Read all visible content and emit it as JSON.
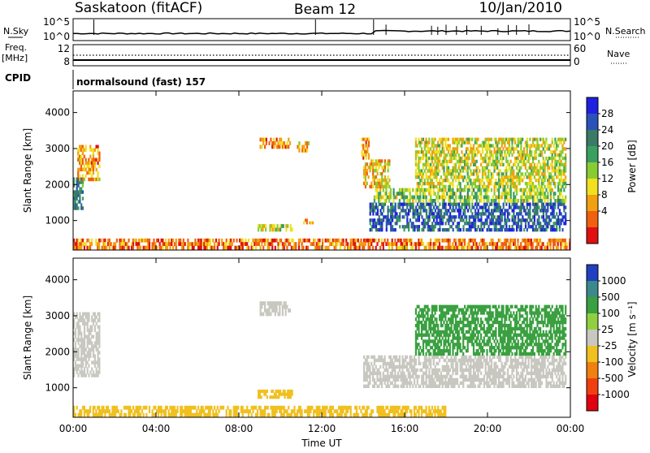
{
  "header": {
    "station": "Saskatoon (fitACF)",
    "beam": "Beam 12",
    "date": "10/Jan/2010"
  },
  "top_panels": {
    "nsky_label": "N.Sky",
    "nsky_ticks": [
      "10^5",
      "10^0"
    ],
    "nsearch_label": "N.Search",
    "nsearch_ticks": [
      "10^5",
      "10^0"
    ],
    "freq_label": "Freq.",
    "freq_unit": "[MHz]",
    "freq_ticks": [
      "12",
      "8"
    ],
    "nave_label": "Nave",
    "nave_ticks": [
      "60",
      "0"
    ],
    "cpid_label": "CPID",
    "cpid_value": "normalsound (fast) 157"
  },
  "chart_data": [
    {
      "type": "heatmap",
      "name": "power",
      "ylabel": "Slant Range [km]",
      "yticks": [
        "4000",
        "3000",
        "2000",
        "1000"
      ],
      "ylim": [
        180,
        4600
      ],
      "xlim": [
        0,
        24
      ],
      "colorbar_label": "Power [dB]",
      "colorbar_ticks": [
        "28",
        "24",
        "20",
        "16",
        "12",
        "8",
        "4"
      ],
      "colors": [
        "#2020e0",
        "#2a52b8",
        "#3a7a66",
        "#3aa060",
        "#88cc33",
        "#f0e020",
        "#f0a010",
        "#f06010",
        "#e01010"
      ],
      "regions": [
        {
          "t0": 0.0,
          "t1": 0.5,
          "r0": 1300,
          "r1": 2200,
          "v": 22
        },
        {
          "t0": 0.2,
          "t1": 1.3,
          "r0": 2100,
          "r1": 3100,
          "v": 10
        },
        {
          "t0": 9.0,
          "t1": 10.5,
          "r0": 3000,
          "r1": 3300,
          "v": 9
        },
        {
          "t0": 10.8,
          "t1": 11.4,
          "r0": 2900,
          "r1": 3200,
          "v": 12
        },
        {
          "t0": 8.9,
          "t1": 10.6,
          "r0": 700,
          "r1": 900,
          "v": 14
        },
        {
          "t0": 11.1,
          "t1": 11.6,
          "r0": 900,
          "r1": 1050,
          "v": 10
        },
        {
          "t0": 13.9,
          "t1": 14.3,
          "r0": 2700,
          "r1": 3300,
          "v": 10
        },
        {
          "t0": 14.3,
          "t1": 23.8,
          "r0": 700,
          "r1": 1500,
          "v": 24
        },
        {
          "t0": 14.5,
          "t1": 23.8,
          "r0": 1500,
          "r1": 1900,
          "v": 16
        },
        {
          "t0": 14.0,
          "t1": 15.3,
          "r0": 1900,
          "r1": 2700,
          "v": 12
        },
        {
          "t0": 16.5,
          "t1": 23.8,
          "r0": 1900,
          "r1": 3300,
          "v": 14
        },
        {
          "t0": 0.0,
          "t1": 24.0,
          "r0": 200,
          "r1": 500,
          "v": 8
        }
      ]
    },
    {
      "type": "heatmap",
      "name": "velocity",
      "ylabel": "Slant Range [km]",
      "yticks": [
        "4000",
        "3000",
        "2000",
        "1000"
      ],
      "ylim": [
        180,
        4600
      ],
      "xlim": [
        0,
        24
      ],
      "xticks": [
        "00:00",
        "04:00",
        "08:00",
        "12:00",
        "16:00",
        "20:00",
        "00:00"
      ],
      "xlabel": "Time UT",
      "colorbar_label": "Velocity [m s⁻¹]",
      "colorbar_ticks": [
        "1000",
        "500",
        "100",
        "25",
        "-25",
        "-100",
        "-500",
        "-1000"
      ],
      "colors": [
        "#2040c0",
        "#3a8a8a",
        "#3aa040",
        "#90d040",
        "#c8c8c0",
        "#f0c020",
        "#f08010",
        "#f04010",
        "#e00010"
      ],
      "regions": [
        {
          "t0": 0.0,
          "t1": 1.3,
          "r0": 1300,
          "r1": 3100,
          "v": 10
        },
        {
          "t0": 9.0,
          "t1": 10.5,
          "r0": 3000,
          "r1": 3400,
          "v": 10
        },
        {
          "t0": 8.9,
          "t1": 10.6,
          "r0": 700,
          "r1": 950,
          "v": -100
        },
        {
          "t0": 14.0,
          "t1": 23.8,
          "r0": 1000,
          "r1": 1900,
          "v": 0
        },
        {
          "t0": 16.5,
          "t1": 23.8,
          "r0": 1900,
          "r1": 3300,
          "v": 120
        },
        {
          "t0": 0.0,
          "t1": 18.0,
          "r0": 200,
          "r1": 500,
          "v": -90
        }
      ]
    }
  ]
}
